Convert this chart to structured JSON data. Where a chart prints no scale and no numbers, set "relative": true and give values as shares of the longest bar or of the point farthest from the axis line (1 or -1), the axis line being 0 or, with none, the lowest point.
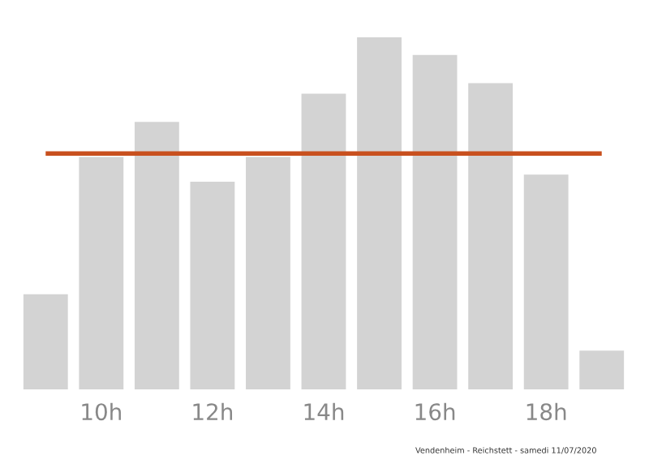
{
  "chart_data": {
    "type": "bar",
    "relative": true,
    "categories": [
      null,
      "10h",
      null,
      "12h",
      null,
      "14h",
      null,
      "16h",
      null,
      "18h",
      null
    ],
    "values": [
      0.27,
      0.66,
      0.76,
      0.59,
      0.66,
      0.84,
      1,
      0.95,
      0.87,
      0.61,
      0.11
    ],
    "color": "#d3d3d3",
    "ref_lines": [
      {
        "axis": "y",
        "value": 0.67,
        "color": "#c8501e",
        "line_style": "solid"
      }
    ],
    "grid": false,
    "legend": false,
    "annotations": [
      "Vendenheim - Reichstett - samedi 11/07/2020"
    ]
  }
}
